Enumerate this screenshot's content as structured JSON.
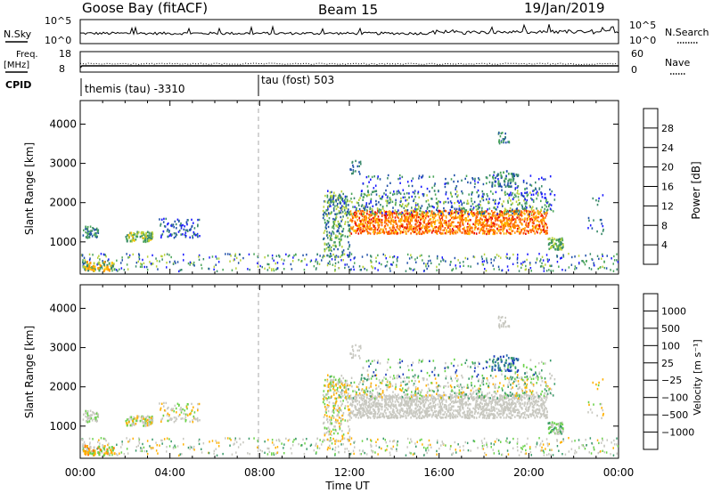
{
  "header": {
    "station": "Goose Bay (fitACF)",
    "beam": "Beam 15",
    "date": "19/Jan/2019"
  },
  "strips": {
    "nsky_label": "N.Sky",
    "nsky_top": "10^5",
    "nsky_bottom": "10^0",
    "nsky_right_top": "10^5",
    "nsky_right_bottom": "10^0",
    "nsearch_label": "N.Search",
    "freq_label": "Freq.",
    "freq_unit": "[MHz]",
    "freq_top": "18",
    "freq_bottom": "8",
    "nave_top": "60",
    "nave_bottom": "0",
    "nave_label": "Nave",
    "cpid_label": "CPID",
    "cpid1": "themis (tau) -3310",
    "cpid2": "tau (fost) 503"
  },
  "colors": {
    "power_scale": [
      "#1a1aff",
      "#1f4fa8",
      "#3a8a6a",
      "#4aa55a",
      "#b8d23a",
      "#ffc400",
      "#ff9a00",
      "#ff5a00",
      "#e60000"
    ],
    "velocity_scale": [
      "#1a3ab8",
      "#2a70a8",
      "#3a9a6a",
      "#6ad24a",
      "#c8c8c0",
      "#c8c8c0",
      "#ffb000",
      "#ff7a00",
      "#ff3000",
      "#e60000"
    ]
  },
  "chart_data": [
    {
      "type": "heatmap",
      "name": "Power",
      "ylabel": "Slant Range [km]",
      "ylim": [
        180,
        4600
      ],
      "yticks": [
        "1000",
        "2000",
        "3000",
        "4000"
      ],
      "xlim": [
        0,
        24
      ],
      "colorbar_label": "Power [dB]",
      "colorbar_ticks": [
        "4",
        "8",
        "12",
        "16",
        "20",
        "24",
        "28"
      ]
    },
    {
      "type": "heatmap",
      "name": "Velocity",
      "ylabel": "Slant Range [km]",
      "ylim": [
        180,
        4600
      ],
      "yticks": [
        "1000",
        "2000",
        "3000",
        "4000"
      ],
      "xlim": [
        0,
        24
      ],
      "xlabel": "Time UT",
      "xticks": [
        "00:00",
        "04:00",
        "08:00",
        "12:00",
        "16:00",
        "20:00",
        "00:00"
      ],
      "colorbar_label": "Velocity [m s⁻¹]",
      "colorbar_ticks": [
        "1000",
        "500",
        "100",
        "25",
        "−25",
        "−100",
        "−500",
        "−1000"
      ]
    }
  ]
}
